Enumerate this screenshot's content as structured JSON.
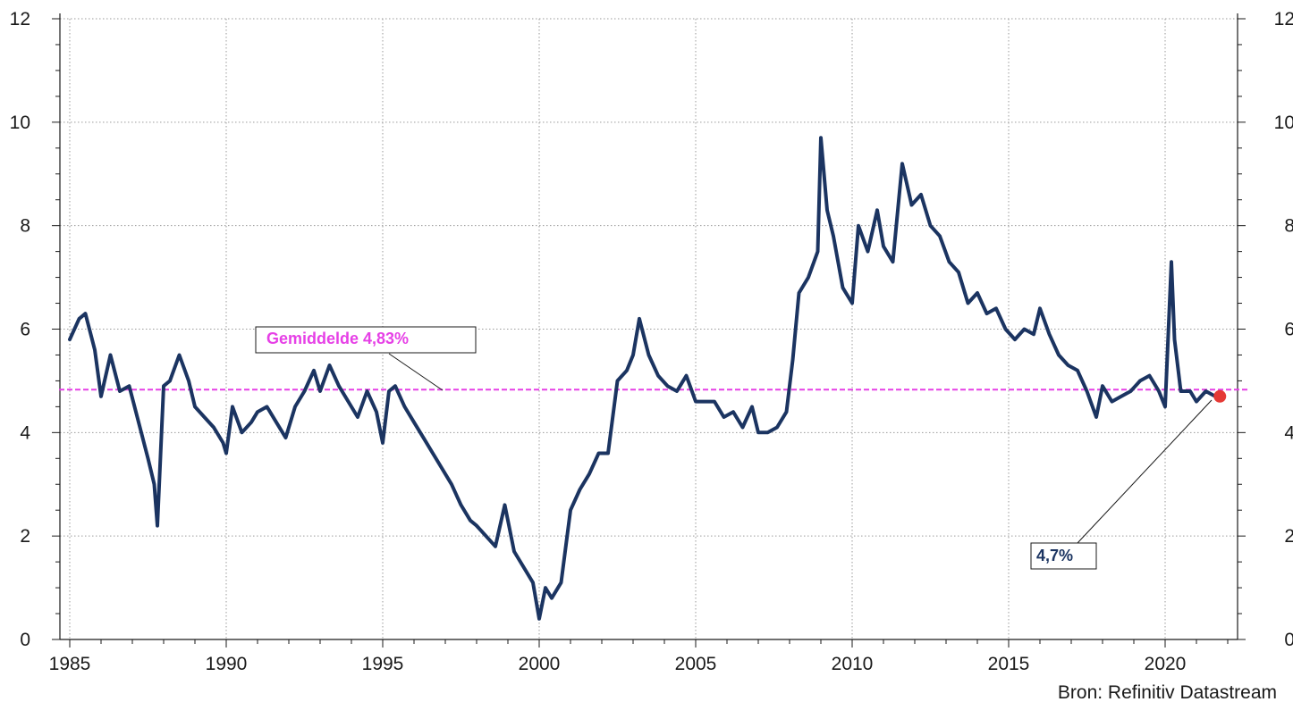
{
  "chart_data": {
    "type": "line",
    "title": "",
    "xlabel": "",
    "ylabel": "",
    "xlim": [
      1985,
      2022.5
    ],
    "ylim": [
      0,
      12
    ],
    "x_ticks": [
      "1985",
      "1990",
      "1995",
      "2000",
      "2005",
      "2010",
      "2015",
      "2020"
    ],
    "y_ticks": [
      "0",
      "2",
      "4",
      "6",
      "8",
      "10",
      "12"
    ],
    "grid": true,
    "mirror_y_axis": true,
    "series": [
      {
        "color": "#1b3461",
        "x": [
          1985.0,
          1985.3,
          1985.5,
          1985.8,
          1986.0,
          1986.3,
          1986.6,
          1986.9,
          1987.2,
          1987.5,
          1987.7,
          1987.8,
          1988.0,
          1988.2,
          1988.5,
          1988.8,
          1989.0,
          1989.3,
          1989.6,
          1989.9,
          1990.0,
          1990.2,
          1990.5,
          1990.8,
          1991.0,
          1991.3,
          1991.6,
          1991.9,
          1992.2,
          1992.5,
          1992.8,
          1993.0,
          1993.3,
          1993.6,
          1993.9,
          1994.2,
          1994.5,
          1994.8,
          1995.0,
          1995.2,
          1995.4,
          1995.7,
          1996.0,
          1996.3,
          1996.6,
          1996.9,
          1997.2,
          1997.5,
          1997.8,
          1998.0,
          1998.3,
          1998.6,
          1998.9,
          1999.2,
          1999.5,
          1999.8,
          2000.0,
          2000.2,
          2000.4,
          2000.7,
          2001.0,
          2001.3,
          2001.6,
          2001.9,
          2002.2,
          2002.5,
          2002.8,
          2003.0,
          2003.2,
          2003.5,
          2003.8,
          2004.1,
          2004.4,
          2004.7,
          2005.0,
          2005.3,
          2005.6,
          2005.9,
          2006.2,
          2006.5,
          2006.8,
          2007.0,
          2007.3,
          2007.6,
          2007.9,
          2008.1,
          2008.3,
          2008.6,
          2008.9,
          2009.0,
          2009.2,
          2009.4,
          2009.7,
          2010.0,
          2010.2,
          2010.5,
          2010.8,
          2011.0,
          2011.3,
          2011.6,
          2011.9,
          2012.2,
          2012.5,
          2012.8,
          2013.1,
          2013.4,
          2013.7,
          2014.0,
          2014.3,
          2014.6,
          2014.9,
          2015.2,
          2015.5,
          2015.8,
          2016.0,
          2016.3,
          2016.6,
          2016.9,
          2017.2,
          2017.5,
          2017.8,
          2018.0,
          2018.3,
          2018.6,
          2018.9,
          2019.2,
          2019.5,
          2019.8,
          2020.0,
          2020.2,
          2020.3,
          2020.5,
          2020.8,
          2021.0,
          2021.3,
          2021.6
        ],
        "y": [
          5.8,
          6.2,
          6.3,
          5.6,
          4.7,
          5.5,
          4.8,
          4.9,
          4.2,
          3.5,
          3.0,
          2.2,
          4.9,
          5.0,
          5.5,
          5.0,
          4.5,
          4.3,
          4.1,
          3.8,
          3.6,
          4.5,
          4.0,
          4.2,
          4.4,
          4.5,
          4.2,
          3.9,
          4.5,
          4.8,
          5.2,
          4.8,
          5.3,
          4.9,
          4.6,
          4.3,
          4.8,
          4.4,
          3.8,
          4.8,
          4.9,
          4.5,
          4.2,
          3.9,
          3.6,
          3.3,
          3.0,
          2.6,
          2.3,
          2.2,
          2.0,
          1.8,
          2.6,
          1.7,
          1.4,
          1.1,
          0.4,
          1.0,
          0.8,
          1.1,
          2.5,
          2.9,
          3.2,
          3.6,
          3.6,
          5.0,
          5.2,
          5.5,
          6.2,
          5.5,
          5.1,
          4.9,
          4.8,
          5.1,
          4.6,
          4.6,
          4.6,
          4.3,
          4.4,
          4.1,
          4.5,
          4.0,
          4.0,
          4.1,
          4.4,
          5.4,
          6.7,
          7.0,
          7.5,
          9.7,
          8.3,
          7.8,
          6.8,
          6.5,
          8.0,
          7.5,
          8.3,
          7.6,
          7.3,
          9.2,
          8.4,
          8.6,
          8.0,
          7.8,
          7.3,
          7.1,
          6.5,
          6.7,
          6.3,
          6.4,
          6.0,
          5.8,
          6.0,
          5.9,
          6.4,
          5.9,
          5.5,
          5.3,
          5.2,
          4.8,
          4.3,
          4.9,
          4.6,
          4.7,
          4.8,
          5.0,
          5.1,
          4.8,
          4.5,
          7.3,
          5.8,
          4.8,
          4.8,
          4.6,
          4.8,
          4.7
        ]
      },
      {
        "color": "#e640e6",
        "style": "dashed",
        "x": [
          1985.0,
          2022.5
        ],
        "y": [
          4.83,
          4.83
        ]
      }
    ],
    "annotations": [
      {
        "text": "Gemiddelde 4,83%",
        "color": "#e640e6"
      },
      {
        "text": "4,7%",
        "color": "#1b3461"
      }
    ],
    "last_point": {
      "x": 2021.75,
      "y": 4.7,
      "color": "#e53935"
    },
    "source": "Bron: Refinitiv Datastream"
  }
}
